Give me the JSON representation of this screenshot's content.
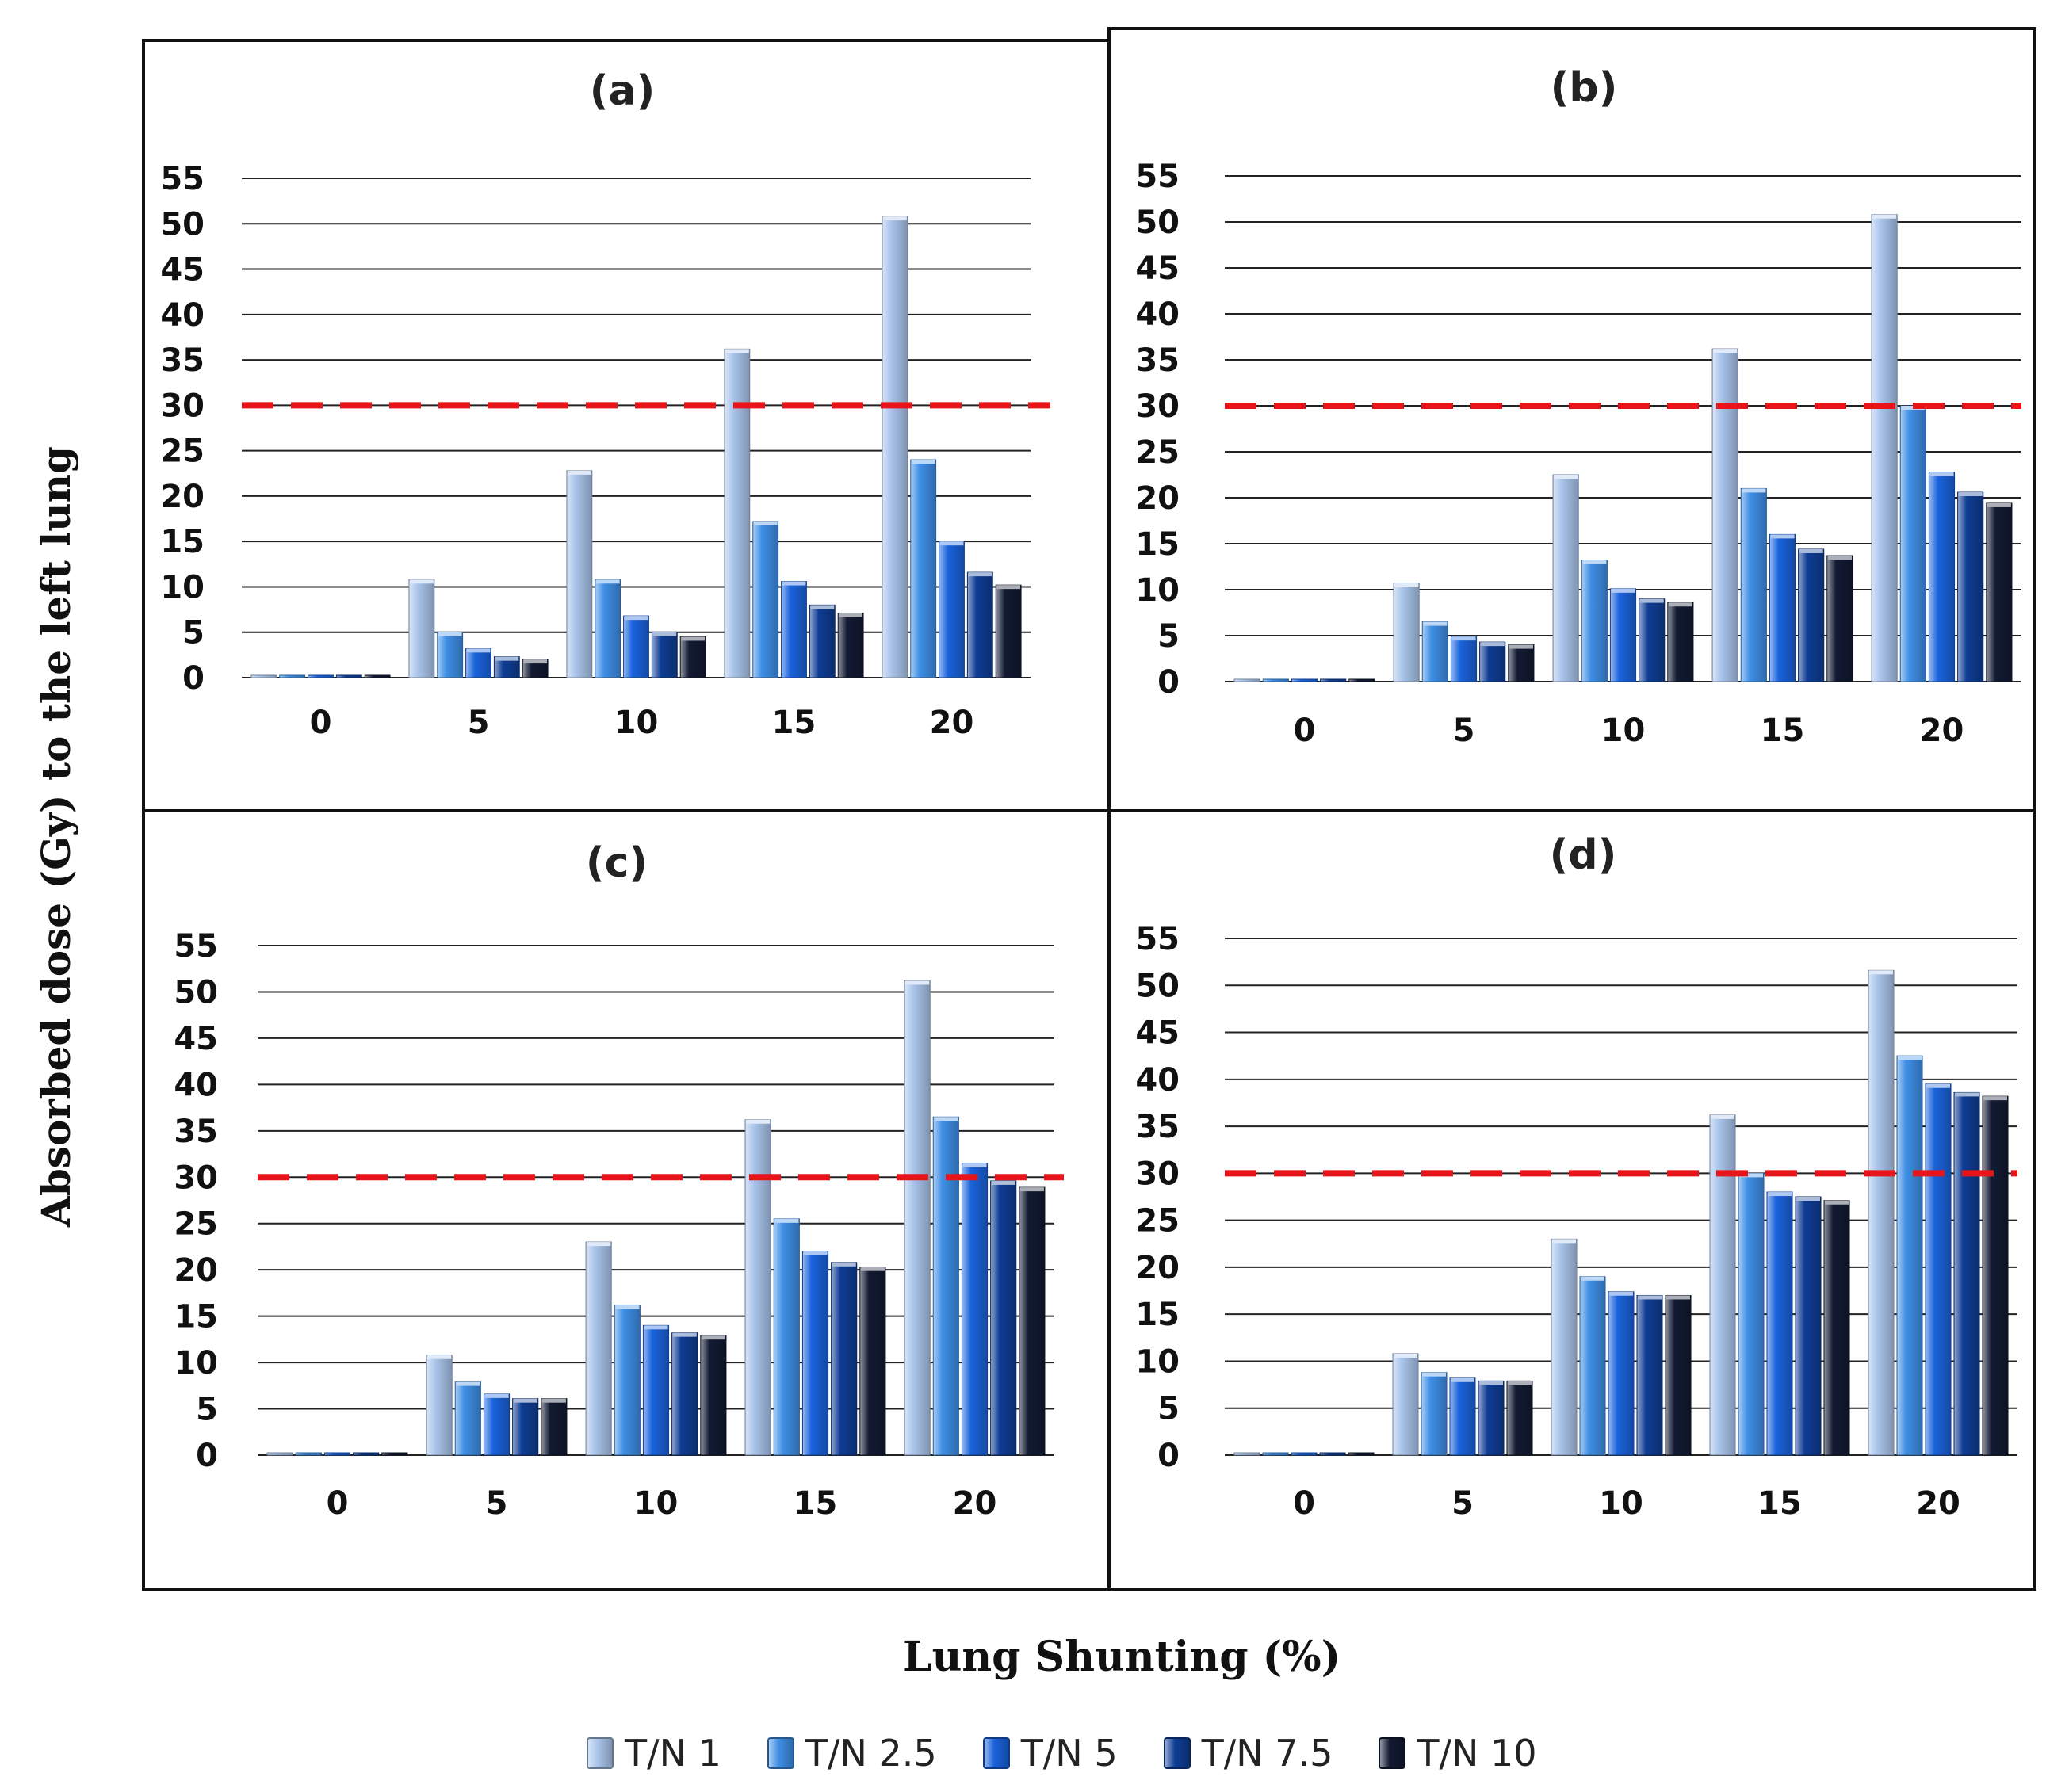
{
  "figure": {
    "ylabel": "Absorbed dose (Gy) to the left lung",
    "xlabel": "Lung Shunting (%)"
  },
  "colors": {
    "series": [
      "#a9c4ea",
      "#3f8fe6",
      "#1a63dc",
      "#0f3d94",
      "#121a33"
    ],
    "threshold_line": "#e8141a",
    "gridline": "#222222"
  },
  "legend": [
    {
      "label": "T/N 1"
    },
    {
      "label": "T/N 2.5"
    },
    {
      "label": "T/N 5"
    },
    {
      "label": "T/N 7.5"
    },
    {
      "label": "T/N 10"
    }
  ],
  "chart_data": [
    {
      "type": "bar",
      "title": "(a)",
      "categories": [
        "0",
        "5",
        "10",
        "15",
        "20"
      ],
      "yticks": [
        "0",
        "5",
        "10",
        "15",
        "20",
        "25",
        "30",
        "35",
        "40",
        "45",
        "50",
        "55"
      ],
      "ylim": [
        0,
        55
      ],
      "threshold": 30,
      "series": [
        {
          "name": "T/N 1",
          "values": [
            0,
            10.8,
            22.8,
            36.2,
            50.8
          ]
        },
        {
          "name": "T/N 2.5",
          "values": [
            0,
            5.0,
            10.8,
            17.2,
            24.0
          ]
        },
        {
          "name": "T/N 5",
          "values": [
            0,
            3.2,
            6.8,
            10.6,
            15.0
          ]
        },
        {
          "name": "T/N 7.5",
          "values": [
            0,
            2.3,
            5.0,
            8.0,
            11.6
          ]
        },
        {
          "name": "T/N 10",
          "values": [
            0,
            2.0,
            4.5,
            7.1,
            10.2
          ]
        }
      ]
    },
    {
      "type": "bar",
      "title": "(b)",
      "categories": [
        "0",
        "5",
        "10",
        "15",
        "20"
      ],
      "yticks": [
        "0",
        "5",
        "10",
        "15",
        "20",
        "25",
        "30",
        "35",
        "40",
        "45",
        "50",
        "55"
      ],
      "ylim": [
        0,
        55
      ],
      "threshold": 30,
      "series": [
        {
          "name": "T/N 1",
          "values": [
            0,
            10.7,
            22.5,
            36.2,
            50.8
          ]
        },
        {
          "name": "T/N 2.5",
          "values": [
            0,
            6.5,
            13.2,
            21.0,
            30.0
          ]
        },
        {
          "name": "T/N 5",
          "values": [
            0,
            4.9,
            10.1,
            16.0,
            22.8
          ]
        },
        {
          "name": "T/N 7.5",
          "values": [
            0,
            4.3,
            9.0,
            14.4,
            20.6
          ]
        },
        {
          "name": "T/N 10",
          "values": [
            0,
            4.0,
            8.6,
            13.7,
            19.4
          ]
        }
      ]
    },
    {
      "type": "bar",
      "title": "(c)",
      "categories": [
        "0",
        "5",
        "10",
        "15",
        "20"
      ],
      "yticks": [
        "0",
        "5",
        "10",
        "15",
        "20",
        "25",
        "30",
        "35",
        "40",
        "45",
        "50",
        "55"
      ],
      "ylim": [
        0,
        55
      ],
      "threshold": 30,
      "series": [
        {
          "name": "T/N 1",
          "values": [
            0,
            10.8,
            23.0,
            36.2,
            51.2
          ]
        },
        {
          "name": "T/N 2.5",
          "values": [
            0,
            7.9,
            16.2,
            25.5,
            36.5
          ]
        },
        {
          "name": "T/N 5",
          "values": [
            0,
            6.6,
            14.0,
            22.0,
            31.5
          ]
        },
        {
          "name": "T/N 7.5",
          "values": [
            0,
            6.1,
            13.2,
            20.8,
            29.6
          ]
        },
        {
          "name": "T/N 10",
          "values": [
            0,
            6.1,
            12.9,
            20.3,
            28.9
          ]
        }
      ]
    },
    {
      "type": "bar",
      "title": "(d)",
      "categories": [
        "0",
        "5",
        "10",
        "15",
        "20"
      ],
      "yticks": [
        "0",
        "5",
        "10",
        "15",
        "20",
        "25",
        "30",
        "35",
        "40",
        "45",
        "50",
        "55"
      ],
      "ylim": [
        0,
        55
      ],
      "threshold": 30,
      "series": [
        {
          "name": "T/N 1",
          "values": [
            0,
            10.8,
            23.0,
            36.2,
            51.6
          ]
        },
        {
          "name": "T/N 2.5",
          "values": [
            0,
            8.8,
            19.0,
            30.0,
            42.5
          ]
        },
        {
          "name": "T/N 5",
          "values": [
            0,
            8.2,
            17.4,
            28.0,
            39.5
          ]
        },
        {
          "name": "T/N 7.5",
          "values": [
            0,
            7.9,
            17.0,
            27.5,
            38.6
          ]
        },
        {
          "name": "T/N 10",
          "values": [
            0,
            7.9,
            17.0,
            27.1,
            38.2
          ]
        }
      ]
    }
  ]
}
